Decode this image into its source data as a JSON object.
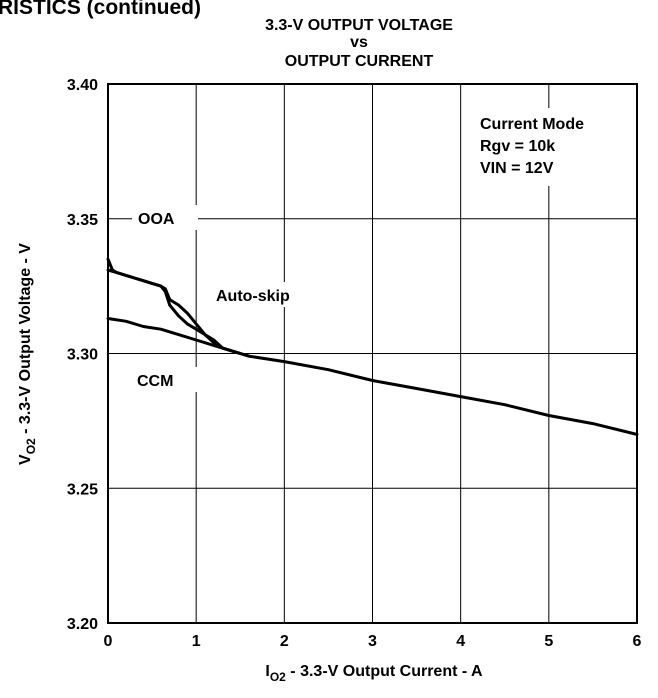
{
  "header_fragment": "RISTICS (continued)",
  "chart_data": {
    "type": "line",
    "title_lines": [
      "3.3-V OUTPUT VOLTAGE",
      "vs",
      "OUTPUT CURRENT"
    ],
    "xlabel": {
      "main": "I",
      "sub": "O2",
      "rest": " - 3.3-V Output Current - A"
    },
    "ylabel": {
      "main": "V",
      "sub": "O2",
      "rest": " - 3.3-V Output Voltage - V"
    },
    "xlim": [
      0,
      6
    ],
    "ylim": [
      3.2,
      3.4
    ],
    "xticks": [
      0,
      1,
      2,
      3,
      4,
      5,
      6
    ],
    "yticks": [
      3.2,
      3.25,
      3.3,
      3.35,
      3.4
    ],
    "ytick_labels": [
      "3.20",
      "3.25",
      "3.30",
      "3.35",
      "3.40"
    ],
    "grid": true,
    "legend_box": [
      "Current Mode",
      "Rgv = 10k",
      "VIN = 12V"
    ],
    "annotations": [
      "OOA",
      "Auto-skip",
      "CCM"
    ],
    "series": [
      {
        "name": "OOA",
        "x": [
          0.0,
          0.05,
          0.1,
          0.2,
          0.3,
          0.4,
          0.5,
          0.6,
          0.65,
          0.7,
          0.8,
          0.9,
          1.0,
          1.1,
          1.2,
          1.3,
          1.5
        ],
        "y": [
          3.335,
          3.331,
          3.33,
          3.329,
          3.328,
          3.327,
          3.326,
          3.325,
          3.324,
          3.32,
          3.318,
          3.315,
          3.311,
          3.307,
          3.304,
          3.302,
          3.3
        ]
      },
      {
        "name": "Auto-skip",
        "x": [
          0.0,
          0.1,
          0.2,
          0.3,
          0.4,
          0.5,
          0.6,
          0.65,
          0.7,
          0.8,
          0.9,
          1.0,
          1.1,
          1.2,
          1.3,
          1.4,
          1.5,
          1.6
        ],
        "y": [
          3.331,
          3.33,
          3.329,
          3.328,
          3.327,
          3.326,
          3.325,
          3.323,
          3.318,
          3.314,
          3.311,
          3.309,
          3.307,
          3.305,
          3.302,
          3.301,
          3.3,
          3.299
        ]
      },
      {
        "name": "CCM",
        "x": [
          0.0,
          0.2,
          0.4,
          0.6,
          0.8,
          1.0,
          1.2,
          1.4,
          1.6,
          2.0,
          2.5,
          3.0,
          3.5,
          4.0,
          4.5,
          5.0,
          5.5,
          6.0
        ],
        "y": [
          3.313,
          3.312,
          3.31,
          3.309,
          3.307,
          3.305,
          3.303,
          3.301,
          3.299,
          3.297,
          3.294,
          3.29,
          3.287,
          3.284,
          3.281,
          3.277,
          3.274,
          3.27
        ]
      }
    ]
  }
}
